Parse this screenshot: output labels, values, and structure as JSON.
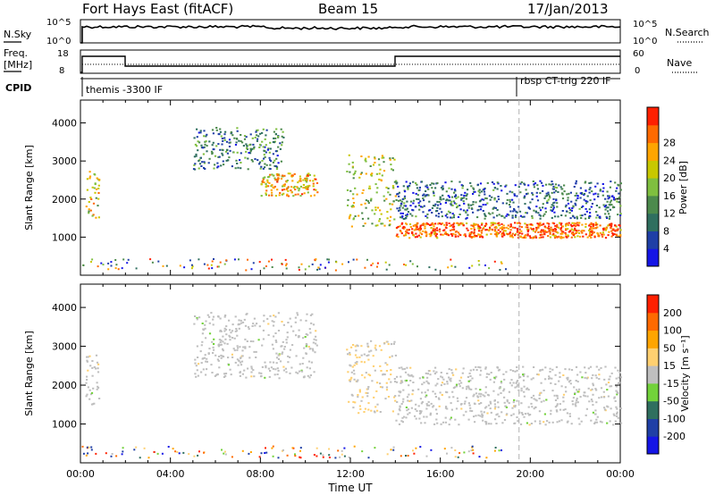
{
  "header": {
    "station": "Fort Hays East (fitACF)",
    "beam": "Beam 15",
    "date": "17/Jan/2013"
  },
  "top_panels": {
    "nsky_label": "N.Sky",
    "nsky_ticks": [
      "10^5",
      "10^0"
    ],
    "nsearch_label": "N.Search",
    "nsearch_ticks": [
      "10^5",
      "10^0"
    ],
    "freq_label_1": "Freq.",
    "freq_label_2": "[MHz]",
    "freq_ticks": [
      "18",
      "8"
    ],
    "nave_label": "Nave",
    "nave_ticks": [
      "60",
      "0"
    ],
    "cpid_label": "CPID",
    "cpid_segments": [
      {
        "start": "00:00",
        "label": "themis -3300 IF"
      },
      {
        "start": "19:30",
        "label": "rbsp CT-trig 220 IF"
      }
    ]
  },
  "colors": {
    "power_scale": [
      "#1515e6",
      "#1f3fa6",
      "#2f6f5f",
      "#4c8a4c",
      "#7fbf3f",
      "#c8c800",
      "#ffa500",
      "#ff6a00",
      "#ff2000"
    ],
    "velocity_scale": [
      "#1515e6",
      "#1f3fa6",
      "#2f6f5f",
      "#72d23a",
      "#bfbfbf",
      "#ffd070",
      "#ffa500",
      "#ff6a00",
      "#ff2000"
    ],
    "ground_scatter": "#bfbfbf"
  },
  "chart_data": [
    {
      "type": "heatmap",
      "panel": "power",
      "ylabel": "Slant Range [km]",
      "yticks": [
        "1000",
        "2000",
        "3000",
        "4000"
      ],
      "ylim": [
        0,
        4600
      ],
      "xlim_hours": [
        0,
        24
      ],
      "colorbar_label": "Power [dB]",
      "colorbar_ticks": [
        "4",
        "8",
        "12",
        "16",
        "20",
        "24",
        "28"
      ],
      "colorbar_range": [
        0,
        32
      ],
      "scatter_bands": [
        {
          "t": [
            0.2,
            0.8
          ],
          "range": [
            1500,
            2800
          ],
          "value": 20
        },
        {
          "t": [
            5.0,
            9.0
          ],
          "range": [
            2800,
            3900
          ],
          "value": 10
        },
        {
          "t": [
            8.0,
            10.5
          ],
          "range": [
            2100,
            2700
          ],
          "value": 22
        },
        {
          "t": [
            11.8,
            14.0
          ],
          "range": [
            1300,
            3200
          ],
          "value": 18
        },
        {
          "t": [
            14.0,
            24.0
          ],
          "range": [
            1000,
            1400
          ],
          "value": 27
        },
        {
          "t": [
            14.0,
            24.0
          ],
          "range": [
            1500,
            2500
          ],
          "value": 8
        }
      ],
      "reference_line_hour": 19.5
    },
    {
      "type": "heatmap",
      "panel": "velocity",
      "ylabel": "Slant Range [km]",
      "yticks": [
        "1000",
        "2000",
        "3000",
        "4000"
      ],
      "ylim": [
        0,
        4600
      ],
      "xlim_hours": [
        0,
        24
      ],
      "xticks": [
        "00:00",
        "04:00",
        "08:00",
        "12:00",
        "16:00",
        "20:00",
        "00:00"
      ],
      "xlabel": "Time UT",
      "colorbar_label": "Velocity [m s⁻¹]",
      "colorbar_ticks": [
        "-200",
        "-100",
        "-50",
        "-15",
        "15",
        "50",
        "100",
        "200"
      ],
      "colorbar_range": [
        -250,
        250
      ],
      "scatter_bands": [
        {
          "t": [
            0.2,
            0.8
          ],
          "range": [
            1500,
            2800
          ],
          "value": 0
        },
        {
          "t": [
            5.0,
            10.5
          ],
          "range": [
            2200,
            3900
          ],
          "value": 0
        },
        {
          "t": [
            11.8,
            14.0
          ],
          "range": [
            1300,
            3200
          ],
          "value": 30
        },
        {
          "t": [
            14.0,
            24.0
          ],
          "range": [
            1000,
            2500
          ],
          "value": 0
        }
      ],
      "reference_line_hour": 19.5
    }
  ]
}
